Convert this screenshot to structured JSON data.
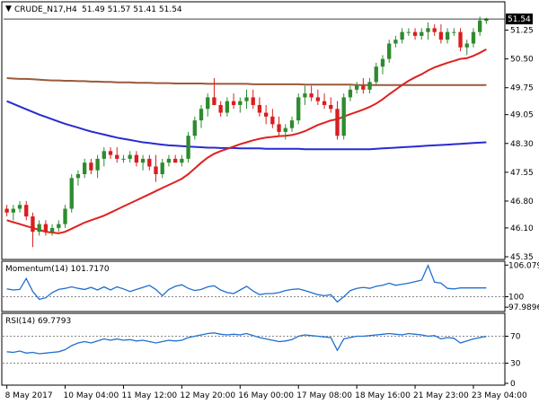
{
  "chart_data": [
    {
      "type": "candlestick",
      "title": "CRUDE_N17,H4",
      "ohlc_label": "51.49 51.57 51.41 51.54",
      "last_price": "51.54",
      "ylim": [
        45.35,
        51.8
      ],
      "y_ticks": [
        "51.25",
        "50.50",
        "49.75",
        "49.05",
        "48.30",
        "47.55",
        "46.80",
        "46.10",
        "45.35"
      ],
      "resistance_level": 49.82,
      "colors": {
        "bullish": "#2e8b2e",
        "bearish": "#d81e1e",
        "sma_fast": "#e02020",
        "sma_mid": "#9a5a3a",
        "sma_slow": "#2a2ad0"
      },
      "candles": [
        [
          46.6,
          46.7,
          46.4,
          46.5
        ],
        [
          46.5,
          46.7,
          46.3,
          46.6
        ],
        [
          46.6,
          46.8,
          46.5,
          46.7
        ],
        [
          46.7,
          46.8,
          46.3,
          46.4
        ],
        [
          46.4,
          46.5,
          45.6,
          46.0
        ],
        [
          46.0,
          46.3,
          45.9,
          46.2
        ],
        [
          46.2,
          46.3,
          45.9,
          46.0
        ],
        [
          46.0,
          46.2,
          45.9,
          46.1
        ],
        [
          46.1,
          46.3,
          46.0,
          46.2
        ],
        [
          46.2,
          46.7,
          46.1,
          46.6
        ],
        [
          46.6,
          47.5,
          46.5,
          47.4
        ],
        [
          47.4,
          47.6,
          47.2,
          47.5
        ],
        [
          47.5,
          47.9,
          47.4,
          47.8
        ],
        [
          47.8,
          47.9,
          47.5,
          47.6
        ],
        [
          47.6,
          48.0,
          47.4,
          47.9
        ],
        [
          47.9,
          48.2,
          47.7,
          48.1
        ],
        [
          48.1,
          48.2,
          47.9,
          48.0
        ],
        [
          48.0,
          48.2,
          47.8,
          47.9
        ],
        [
          47.9,
          48.0,
          47.8,
          47.9
        ],
        [
          47.9,
          48.1,
          47.8,
          48.0
        ],
        [
          48.0,
          48.1,
          47.7,
          47.8
        ],
        [
          47.8,
          48.0,
          47.6,
          47.9
        ],
        [
          47.9,
          48.0,
          47.6,
          47.7
        ],
        [
          47.7,
          48.0,
          47.3,
          47.5
        ],
        [
          47.5,
          47.9,
          47.4,
          47.8
        ],
        [
          47.8,
          48.0,
          47.7,
          47.9
        ],
        [
          47.9,
          48.0,
          47.8,
          47.8
        ],
        [
          47.8,
          48.0,
          47.7,
          47.9
        ],
        [
          47.9,
          48.6,
          47.8,
          48.5
        ],
        [
          48.5,
          49.0,
          48.4,
          48.9
        ],
        [
          48.9,
          49.3,
          48.7,
          49.2
        ],
        [
          49.2,
          49.6,
          49.0,
          49.5
        ],
        [
          49.5,
          50.0,
          49.3,
          49.3
        ],
        [
          49.3,
          49.4,
          49.0,
          49.1
        ],
        [
          49.1,
          49.5,
          49.0,
          49.4
        ],
        [
          49.4,
          49.6,
          49.2,
          49.3
        ],
        [
          49.3,
          49.5,
          49.1,
          49.4
        ],
        [
          49.4,
          49.7,
          49.2,
          49.5
        ],
        [
          49.5,
          49.7,
          49.2,
          49.3
        ],
        [
          49.3,
          49.5,
          49.0,
          49.1
        ],
        [
          49.1,
          49.3,
          48.8,
          49.0
        ],
        [
          49.0,
          49.2,
          48.7,
          48.8
        ],
        [
          48.8,
          49.0,
          48.5,
          48.6
        ],
        [
          48.6,
          48.8,
          48.4,
          48.7
        ],
        [
          48.7,
          49.0,
          48.6,
          48.9
        ],
        [
          48.9,
          49.6,
          48.8,
          49.5
        ],
        [
          49.5,
          49.8,
          49.3,
          49.6
        ],
        [
          49.6,
          49.8,
          49.4,
          49.5
        ],
        [
          49.5,
          49.7,
          49.3,
          49.4
        ],
        [
          49.4,
          49.6,
          49.2,
          49.3
        ],
        [
          49.3,
          49.5,
          49.1,
          49.2
        ],
        [
          49.2,
          49.4,
          48.4,
          48.5
        ],
        [
          48.5,
          49.6,
          48.4,
          49.5
        ],
        [
          49.5,
          49.8,
          49.4,
          49.7
        ],
        [
          49.7,
          49.9,
          49.6,
          49.8
        ],
        [
          49.8,
          50.0,
          49.6,
          49.7
        ],
        [
          49.7,
          50.0,
          49.6,
          49.9
        ],
        [
          49.9,
          50.4,
          49.8,
          50.3
        ],
        [
          50.3,
          50.6,
          50.1,
          50.5
        ],
        [
          50.5,
          51.0,
          50.4,
          50.9
        ],
        [
          50.9,
          51.1,
          50.8,
          51.0
        ],
        [
          51.0,
          51.3,
          50.9,
          51.2
        ],
        [
          51.2,
          51.3,
          51.1,
          51.2
        ],
        [
          51.2,
          51.3,
          51.0,
          51.1
        ],
        [
          51.1,
          51.3,
          51.0,
          51.2
        ],
        [
          51.2,
          51.45,
          51.0,
          51.3
        ],
        [
          51.3,
          51.4,
          51.1,
          51.2
        ],
        [
          51.2,
          51.4,
          50.9,
          51.0
        ],
        [
          51.0,
          51.3,
          50.9,
          51.2
        ],
        [
          51.2,
          51.3,
          51.1,
          51.2
        ],
        [
          51.2,
          51.3,
          50.7,
          50.8
        ],
        [
          50.8,
          51.0,
          50.6,
          50.9
        ],
        [
          50.9,
          51.3,
          50.8,
          51.2
        ],
        [
          51.2,
          51.6,
          51.1,
          51.5
        ],
        [
          51.49,
          51.57,
          51.41,
          51.54
        ]
      ],
      "sma_fast": [
        46.3,
        46.25,
        46.2,
        46.15,
        46.1,
        46.05,
        46.0,
        45.98,
        45.96,
        46.0,
        46.08,
        46.16,
        46.24,
        46.3,
        46.36,
        46.42,
        46.5,
        46.58,
        46.66,
        46.74,
        46.82,
        46.9,
        46.98,
        47.06,
        47.14,
        47.22,
        47.3,
        47.38,
        47.5,
        47.65,
        47.8,
        47.93,
        48.03,
        48.1,
        48.16,
        48.22,
        48.28,
        48.33,
        48.38,
        48.42,
        48.45,
        48.47,
        48.49,
        48.5,
        48.52,
        48.56,
        48.62,
        48.7,
        48.78,
        48.84,
        48.9,
        48.93,
        49.0,
        49.06,
        49.12,
        49.18,
        49.25,
        49.34,
        49.45,
        49.58,
        49.7,
        49.82,
        49.93,
        50.02,
        50.1,
        50.2,
        50.28,
        50.34,
        50.4,
        50.45,
        50.5,
        50.52,
        50.58,
        50.66,
        50.75
      ],
      "sma_mid": [
        50.0,
        49.99,
        49.98,
        49.98,
        49.97,
        49.96,
        49.95,
        49.94,
        49.94,
        49.93,
        49.93,
        49.92,
        49.92,
        49.91,
        49.91,
        49.9,
        49.9,
        49.89,
        49.89,
        49.89,
        49.88,
        49.88,
        49.88,
        49.87,
        49.87,
        49.87,
        49.86,
        49.86,
        49.86,
        49.86,
        49.86,
        49.85,
        49.85,
        49.85,
        49.85,
        49.85,
        49.85,
        49.85,
        49.84,
        49.84,
        49.84,
        49.84,
        49.84,
        49.84,
        49.84,
        49.84,
        49.83,
        49.83,
        49.83,
        49.83,
        49.83,
        49.83,
        49.83,
        49.83,
        49.82,
        49.82,
        49.82,
        49.82,
        49.82,
        49.82,
        49.82,
        49.82,
        49.82,
        49.82,
        49.82,
        49.82,
        49.82,
        49.82,
        49.82,
        49.82,
        49.82,
        49.82,
        49.82,
        49.82,
        49.82
      ],
      "sma_slow": [
        49.4,
        49.33,
        49.26,
        49.19,
        49.12,
        49.05,
        48.99,
        48.93,
        48.87,
        48.81,
        48.76,
        48.71,
        48.66,
        48.61,
        48.57,
        48.53,
        48.49,
        48.45,
        48.42,
        48.39,
        48.36,
        48.33,
        48.31,
        48.29,
        48.27,
        48.25,
        48.24,
        48.23,
        48.22,
        48.21,
        48.2,
        48.19,
        48.19,
        48.18,
        48.18,
        48.18,
        48.17,
        48.17,
        48.17,
        48.17,
        48.16,
        48.16,
        48.16,
        48.16,
        48.16,
        48.16,
        48.15,
        48.15,
        48.15,
        48.15,
        48.15,
        48.15,
        48.15,
        48.15,
        48.15,
        48.15,
        48.15,
        48.16,
        48.17,
        48.18,
        48.19,
        48.2,
        48.21,
        48.22,
        48.23,
        48.24,
        48.25,
        48.26,
        48.27,
        48.28,
        48.29,
        48.3,
        48.31,
        48.32,
        48.33
      ],
      "x_tick_labels": [
        "8 May 2017",
        "10 May 04:00",
        "11 May 12:00",
        "12 May 20:00",
        "16 May 00:00",
        "17 May 08:00",
        "18 May 16:00",
        "21 May 23:00",
        "23 May 04:00"
      ],
      "x_tick_candles": [
        0,
        9,
        18,
        27,
        36,
        45,
        54,
        63,
        72
      ]
    },
    {
      "type": "line",
      "title": "Momentum(14) 101.7170",
      "ylim": [
        97.5,
        106.3
      ],
      "y_ticks": [
        "106.079",
        "100",
        "97.9896"
      ],
      "reference_level": 100,
      "color": "#1f6fd0",
      "values": [
        101.5,
        101.3,
        101.4,
        103.5,
        101.0,
        99.5,
        99.8,
        100.8,
        101.4,
        101.6,
        101.9,
        101.6,
        101.4,
        101.8,
        101.3,
        101.9,
        101.3,
        101.9,
        101.5,
        101.0,
        101.4,
        101.8,
        102.2,
        101.4,
        100.2,
        101.4,
        102.0,
        102.3,
        101.6,
        101.2,
        101.4,
        101.9,
        102.1,
        101.3,
        100.8,
        100.6,
        101.3,
        102.0,
        101.1,
        100.4,
        100.6,
        100.6,
        100.8,
        101.2,
        101.4,
        101.5,
        101.2,
        100.8,
        100.4,
        100.2,
        100.4,
        99.0,
        100.0,
        101.2,
        101.6,
        101.8,
        101.6,
        102.0,
        102.2,
        102.6,
        102.2,
        102.4,
        102.6,
        102.9,
        103.2,
        106.0,
        102.8,
        102.6,
        101.6,
        101.5,
        101.7,
        101.7,
        101.7,
        101.7,
        101.7
      ]
    },
    {
      "type": "line",
      "title": "RSI(14) 69.7793",
      "ylim": [
        0,
        100
      ],
      "y_ticks": [
        "70",
        "30",
        "0"
      ],
      "levels": [
        70,
        30
      ],
      "color": "#1f6fd0",
      "values": [
        47,
        46,
        48,
        45,
        46,
        44,
        45,
        46,
        47,
        50,
        56,
        60,
        62,
        60,
        63,
        66,
        64,
        66,
        64,
        65,
        63,
        64,
        62,
        60,
        62,
        64,
        63,
        64,
        68,
        70,
        72,
        74,
        75,
        73,
        72,
        73,
        72,
        74,
        71,
        68,
        66,
        64,
        62,
        63,
        65,
        70,
        72,
        71,
        70,
        69,
        68,
        49,
        66,
        68,
        70,
        70,
        71,
        72,
        73,
        74,
        73,
        72,
        74,
        73,
        72,
        70,
        71,
        66,
        68,
        67,
        60,
        63,
        66,
        68,
        69.78
      ]
    }
  ]
}
